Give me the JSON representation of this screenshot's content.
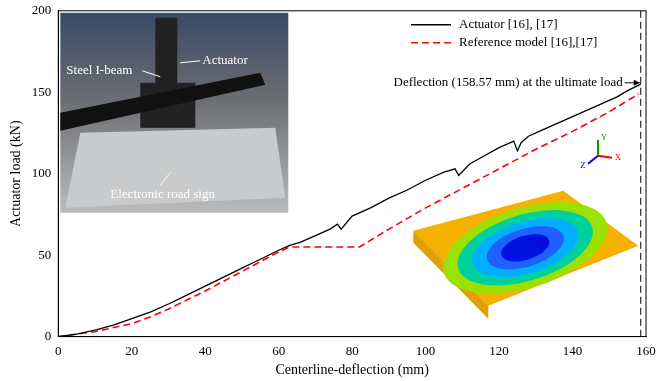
{
  "chart_data": {
    "type": "line",
    "x_label": "Centerline-deflection (mm)",
    "y_label": "Actuator load (kN)",
    "xlim": [
      0,
      160
    ],
    "xticks": [
      0,
      20,
      40,
      60,
      80,
      100,
      120,
      140,
      160
    ],
    "ylim": [
      0,
      200
    ],
    "yticks": [
      0,
      50,
      100,
      150,
      200
    ],
    "grid": false,
    "legend": "upper right",
    "series": [
      {
        "name": "Actuator [16], [17]",
        "color": "#000000",
        "line_style": "solid",
        "marker": "none",
        "x": [
          0,
          5,
          10,
          15,
          20,
          25,
          30,
          35,
          40,
          45,
          50,
          55,
          60,
          63,
          66,
          70,
          74,
          76,
          77,
          80,
          85,
          90,
          95,
          100,
          105,
          108,
          109,
          112,
          116,
          120,
          124,
          125,
          126,
          128,
          132,
          136,
          140,
          144,
          148,
          152,
          155,
          158.57
        ],
        "values": [
          0,
          1.5,
          4,
          7,
          11,
          15,
          20,
          25.5,
          31,
          36.5,
          42,
          47.5,
          53,
          56,
          58,
          62,
          66,
          69,
          66,
          74,
          79,
          85,
          90,
          96,
          101,
          103,
          99,
          106,
          111,
          116,
          120,
          114,
          119,
          123,
          127,
          131,
          135,
          139,
          143,
          147,
          151,
          155
        ]
      },
      {
        "name": "Reference model [16],[17]",
        "color": "#ff0000",
        "line_style": "dashed",
        "marker": "none",
        "x": [
          0,
          10,
          20,
          25,
          30,
          40,
          50,
          60,
          63,
          70,
          82,
          90,
          100,
          110,
          120,
          130,
          140,
          150,
          158
        ],
        "values": [
          0,
          3,
          8,
          12,
          17,
          28,
          40,
          52,
          55,
          55,
          55,
          66,
          79,
          91,
          103,
          115,
          126,
          138,
          149
        ]
      }
    ],
    "annotation": {
      "text": "Deflection (158.57 mm) at the ultimate load",
      "x": 158.57,
      "color": "#000000",
      "line_style": "dashed"
    },
    "inset_labels": [
      "Steel I-beam",
      "Actuator",
      "Electronic road sign"
    ],
    "axis_triad": [
      "Y",
      "Z",
      "X"
    ]
  }
}
